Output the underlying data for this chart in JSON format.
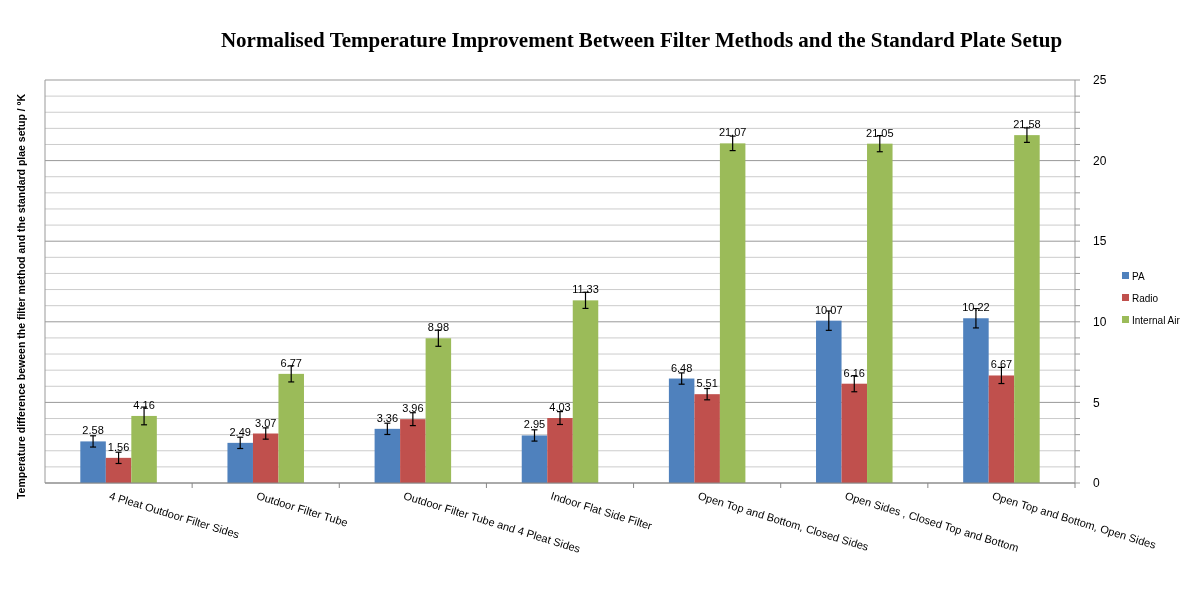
{
  "chart_data": {
    "type": "bar",
    "title": "Normalised Temperature Improvement Between Filter Methods and the Standard Plate Setup",
    "ylabel": "Temperature difference beween the filter method and the standard plae setup / ºK",
    "categories": [
      "4 Pleat Outdoor Filter Sides",
      "Outdoor Filter Tube",
      "Outdoor Filter Tube and 4 Pleat Sides",
      "Indoor Flat Side Filter",
      "Open Top and Bottom,  Closed Sides",
      "Open Sides , Closed Top and Bottom",
      "Open Top and Bottom,  Open Sides"
    ],
    "series": [
      {
        "name": "PA",
        "color": "#4f81bd",
        "values": [
          2.58,
          2.49,
          3.36,
          2.95,
          6.48,
          10.07,
          10.22
        ],
        "errors": [
          0.35,
          0.35,
          0.35,
          0.35,
          0.35,
          0.6,
          0.6
        ]
      },
      {
        "name": "Radio",
        "color": "#c0504d",
        "values": [
          1.56,
          3.07,
          3.96,
          4.03,
          5.51,
          6.16,
          6.67
        ],
        "errors": [
          0.35,
          0.35,
          0.4,
          0.4,
          0.35,
          0.5,
          0.5
        ]
      },
      {
        "name": "Internal Air",
        "color": "#9bbb59",
        "values": [
          4.16,
          6.77,
          8.98,
          11.33,
          21.07,
          21.05,
          21.58
        ],
        "errors": [
          0.55,
          0.5,
          0.5,
          0.5,
          0.45,
          0.5,
          0.45
        ]
      }
    ],
    "ylim": [
      0,
      25
    ],
    "yticks": [
      0,
      {
        "value": 1,
        "label": null
      },
      {
        "value": 2,
        "label": null
      },
      {
        "value": 3,
        "label": null
      },
      {
        "value": 4,
        "label": null
      },
      5,
      {
        "value": 6,
        "label": null
      },
      {
        "value": 7,
        "label": null
      },
      {
        "value": 8,
        "label": null
      },
      {
        "value": 9,
        "label": null
      },
      10,
      {
        "value": 11,
        "label": null
      },
      {
        "value": 12,
        "label": null
      },
      {
        "value": 13,
        "label": null
      },
      {
        "value": 14,
        "label": null
      },
      15,
      {
        "value": 16,
        "label": null
      },
      {
        "value": 17,
        "label": null
      },
      {
        "value": 18,
        "label": null
      },
      {
        "value": 19,
        "label": null
      },
      20,
      {
        "value": 21,
        "label": null
      },
      {
        "value": 22,
        "label": null
      },
      {
        "value": 23,
        "label": null
      },
      {
        "value": 24,
        "label": null
      },
      25
    ],
    "grid": true,
    "legend": "right",
    "data_labels": true
  }
}
